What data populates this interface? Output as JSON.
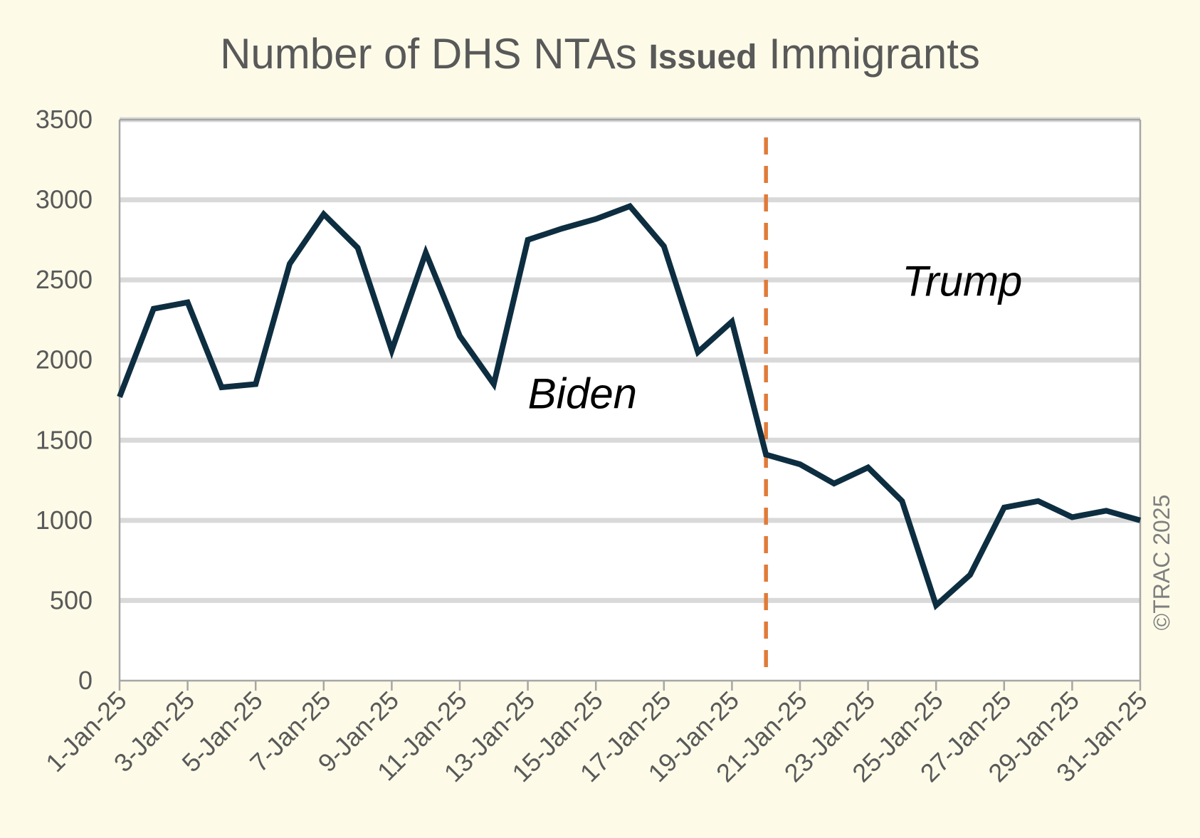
{
  "title": {
    "part1": "Number of DHS NTAs ",
    "bold": "Issued",
    "part2": " Immigrants"
  },
  "credit": "©TRAC 2025",
  "colors": {
    "line": "#0d2e40",
    "divider": "#e07b39",
    "grid": "#d9d9d9",
    "background": "#fdfbe8"
  },
  "chart_data": {
    "type": "line",
    "title": "Number of DHS NTAs Issued Immigrants",
    "xlabel": "",
    "ylabel": "",
    "ylim": [
      0,
      3500
    ],
    "yticks": [
      0,
      500,
      1000,
      1500,
      2000,
      2500,
      3000,
      3500
    ],
    "grid": true,
    "x_tick_labels": [
      "1-Jan-25",
      "3-Jan-25",
      "5-Jan-25",
      "7-Jan-25",
      "9-Jan-25",
      "11-Jan-25",
      "13-Jan-25",
      "15-Jan-25",
      "17-Jan-25",
      "19-Jan-25",
      "21-Jan-25",
      "23-Jan-25",
      "25-Jan-25",
      "27-Jan-25",
      "29-Jan-25",
      "31-Jan-25"
    ],
    "x": [
      "1-Jan-25",
      "2-Jan-25",
      "3-Jan-25",
      "4-Jan-25",
      "5-Jan-25",
      "6-Jan-25",
      "7-Jan-25",
      "8-Jan-25",
      "9-Jan-25",
      "10-Jan-25",
      "11-Jan-25",
      "12-Jan-25",
      "13-Jan-25",
      "14-Jan-25",
      "15-Jan-25",
      "16-Jan-25",
      "17-Jan-25",
      "18-Jan-25",
      "19-Jan-25",
      "20-Jan-25",
      "21-Jan-25",
      "22-Jan-25",
      "23-Jan-25",
      "24-Jan-25",
      "25-Jan-25",
      "26-Jan-25",
      "27-Jan-25",
      "28-Jan-25",
      "29-Jan-25",
      "30-Jan-25",
      "31-Jan-25"
    ],
    "series": [
      {
        "values": [
          1770,
          2320,
          2360,
          1830,
          1850,
          2600,
          2910,
          2700,
          2060,
          2670,
          2150,
          1850,
          2750,
          2820,
          2880,
          2960,
          2710,
          2050,
          2240,
          1410,
          1350,
          1230,
          1330,
          1120,
          470,
          660,
          1080,
          1120,
          1020,
          1060,
          1000
        ]
      }
    ],
    "divider_at": "20-Jan-25",
    "annotations": [
      {
        "text": "Biden",
        "x": "13-Jan-25",
        "y": 1700
      },
      {
        "text": "Trump",
        "x": "24-Jan-25",
        "y": 2400
      }
    ]
  }
}
